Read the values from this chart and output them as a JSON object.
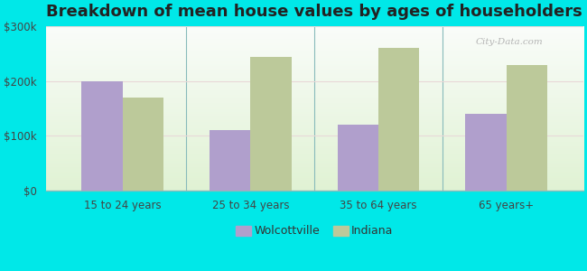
{
  "title": "Breakdown of mean house values by ages of householders",
  "categories": [
    "15 to 24 years",
    "25 to 34 years",
    "35 to 64 years",
    "65 years+"
  ],
  "wolcottville_values": [
    200000,
    110000,
    120000,
    140000
  ],
  "indiana_values": [
    170000,
    245000,
    260000,
    230000
  ],
  "wolcottville_color": "#b09fcc",
  "indiana_color": "#bcc99a",
  "background_color": "#00e8e8",
  "title_fontsize": 13,
  "ylim": [
    0,
    300000
  ],
  "yticks": [
    0,
    100000,
    200000,
    300000
  ],
  "ytick_labels": [
    "$0",
    "$100k",
    "$200k",
    "$300k"
  ],
  "legend_labels": [
    "Wolcottville",
    "Indiana"
  ],
  "bar_width": 0.32
}
